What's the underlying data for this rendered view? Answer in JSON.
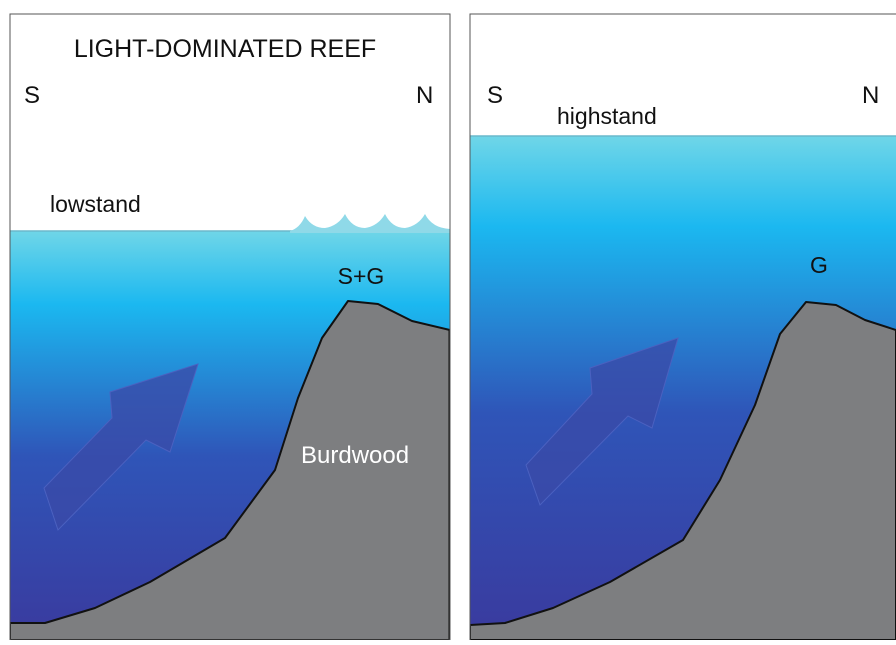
{
  "left_panel": {
    "title": "LIGHT-DOMINATED REEF",
    "south_label": "S",
    "north_label": "N",
    "sea_level_label": "lowstand",
    "reef_label": "S+G",
    "bank_label": "Burdwood"
  },
  "right_panel": {
    "south_label": "S",
    "north_label": "N",
    "sea_level_label": "highstand",
    "reef_label": "G"
  },
  "colors": {
    "water_top": "#6fd6e8",
    "water_upper": "#1bb8f0",
    "water_lower": "#2f55b8",
    "water_bottom": "#3a3a9e",
    "rock": "#7d7e80",
    "arrow": "#3a4aa8",
    "waves": "#8fd9e8",
    "frame": "#555555"
  }
}
